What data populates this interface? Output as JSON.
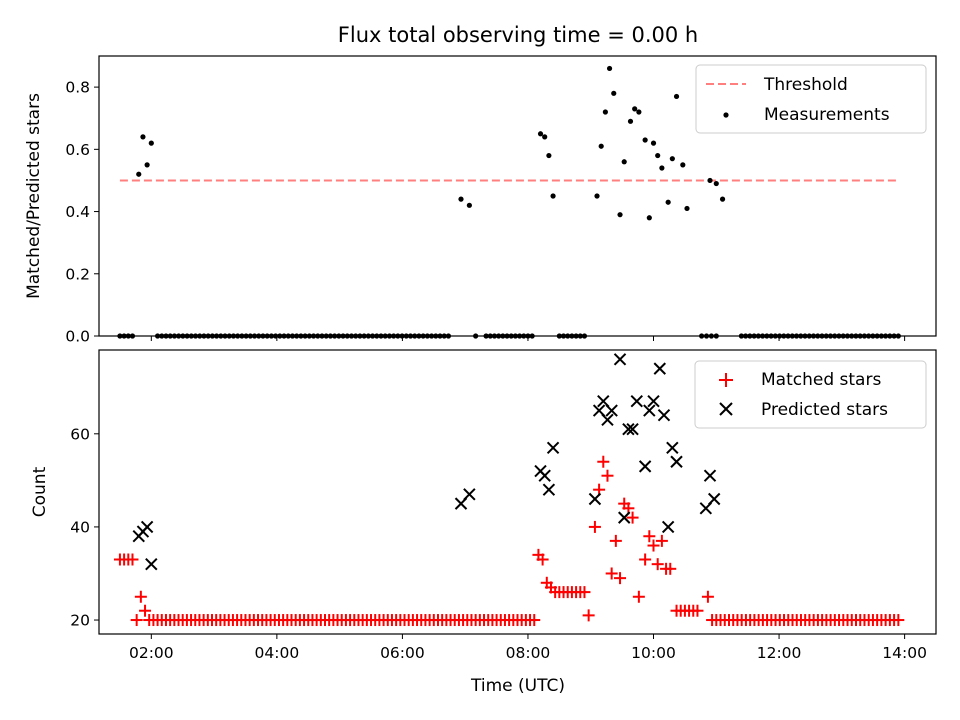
{
  "colors": {
    "threshold": "#ff7f7f",
    "measurements": "#000000",
    "matched": "#ff0000",
    "predicted": "#000000"
  },
  "chart_data": [
    {
      "type": "scatter",
      "title": "Flux total observing time = 0.00 h",
      "xlabel": "",
      "ylabel": "Matched/Predicted stars",
      "xlim": [
        "01:10",
        "14:30"
      ],
      "ylim": [
        0,
        0.9
      ],
      "yticks": [
        "0.0",
        "0.2",
        "0.4",
        "0.6",
        "0.8"
      ],
      "legend_position": "top-right",
      "series": [
        {
          "name": "Threshold",
          "style": "dashed-line",
          "points": [
            [
              "01:30",
              0.5
            ],
            [
              "13:55",
              0.5
            ]
          ]
        },
        {
          "name": "Measurements",
          "style": "dot",
          "points": [
            [
              "01:48",
              0.52
            ],
            [
              "01:52",
              0.64
            ],
            [
              "01:56",
              0.55
            ],
            [
              "02:00",
              0.62
            ],
            [
              "06:56",
              0.44
            ],
            [
              "07:04",
              0.42
            ],
            [
              "08:12",
              0.65
            ],
            [
              "08:16",
              0.64
            ],
            [
              "08:20",
              0.58
            ],
            [
              "08:24",
              0.45
            ],
            [
              "09:06",
              0.45
            ],
            [
              "09:10",
              0.61
            ],
            [
              "09:14",
              0.72
            ],
            [
              "09:18",
              0.86
            ],
            [
              "09:22",
              0.78
            ],
            [
              "09:28",
              0.39
            ],
            [
              "09:32",
              0.56
            ],
            [
              "09:38",
              0.69
            ],
            [
              "09:42",
              0.73
            ],
            [
              "09:46",
              0.72
            ],
            [
              "09:52",
              0.63
            ],
            [
              "09:56",
              0.38
            ],
            [
              "10:00",
              0.62
            ],
            [
              "10:04",
              0.58
            ],
            [
              "10:08",
              0.54
            ],
            [
              "10:14",
              0.43
            ],
            [
              "10:18",
              0.57
            ],
            [
              "10:22",
              0.77
            ],
            [
              "10:28",
              0.55
            ],
            [
              "10:32",
              0.41
            ],
            [
              "10:54",
              0.5
            ],
            [
              "11:00",
              0.49
            ],
            [
              "11:06",
              0.44
            ]
          ],
          "zero_value_runs": [
            [
              "01:30",
              "01:42",
              4
            ],
            [
              "02:06",
              "06:44",
              70
            ],
            [
              "07:10",
              "07:12",
              1
            ],
            [
              "07:20",
              "08:04",
              12
            ],
            [
              "08:30",
              "08:54",
              7
            ],
            [
              "10:46",
              "11:00",
              4
            ],
            [
              "11:24",
              "13:54",
              38
            ]
          ]
        }
      ]
    },
    {
      "type": "scatter",
      "title": "",
      "xlabel": "Time (UTC)",
      "ylabel": "Count",
      "xlim": [
        "01:10",
        "14:30"
      ],
      "ylim": [
        17,
        78
      ],
      "yticks": [
        "20",
        "40",
        "60"
      ],
      "xticks": [
        "02:00",
        "04:00",
        "06:00",
        "08:00",
        "10:00",
        "12:00",
        "14:00"
      ],
      "legend_position": "top-right",
      "series": [
        {
          "name": "Matched stars",
          "marker": "plus",
          "points": [
            [
              "01:30",
              33
            ],
            [
              "01:34",
              33
            ],
            [
              "01:38",
              33
            ],
            [
              "01:42",
              33
            ],
            [
              "01:46",
              20
            ],
            [
              "01:50",
              25
            ],
            [
              "01:54",
              22
            ],
            [
              "01:58",
              20
            ],
            [
              "08:10",
              34
            ],
            [
              "08:14",
              33
            ],
            [
              "08:18",
              28
            ],
            [
              "08:22",
              27
            ],
            [
              "08:26",
              26
            ],
            [
              "08:30",
              26
            ],
            [
              "08:34",
              26
            ],
            [
              "08:38",
              26
            ],
            [
              "08:42",
              26
            ],
            [
              "08:46",
              26
            ],
            [
              "08:50",
              26
            ],
            [
              "08:54",
              26
            ],
            [
              "08:58",
              21
            ],
            [
              "09:04",
              40
            ],
            [
              "09:08",
              48
            ],
            [
              "09:12",
              54
            ],
            [
              "09:16",
              51
            ],
            [
              "09:20",
              30
            ],
            [
              "09:24",
              37
            ],
            [
              "09:28",
              29
            ],
            [
              "09:32",
              45
            ],
            [
              "09:36",
              44
            ],
            [
              "09:40",
              42
            ],
            [
              "09:46",
              25
            ],
            [
              "09:52",
              33
            ],
            [
              "09:56",
              38
            ],
            [
              "10:00",
              36
            ],
            [
              "10:04",
              32
            ],
            [
              "10:08",
              37
            ],
            [
              "10:12",
              31
            ],
            [
              "10:16",
              31
            ],
            [
              "10:22",
              22
            ],
            [
              "10:26",
              22
            ],
            [
              "10:30",
              22
            ],
            [
              "10:34",
              22
            ],
            [
              "10:38",
              22
            ],
            [
              "10:42",
              22
            ],
            [
              "10:52",
              25
            ],
            [
              "10:56",
              20
            ]
          ],
          "baseline_runs": [
            [
              "02:02",
              "08:06",
              20,
              92
            ],
            [
              "11:00",
              "13:54",
              20,
              44
            ]
          ]
        },
        {
          "name": "Predicted stars",
          "marker": "x",
          "points": [
            [
              "01:48",
              38
            ],
            [
              "01:52",
              39
            ],
            [
              "01:56",
              40
            ],
            [
              "02:00",
              32
            ],
            [
              "06:56",
              45
            ],
            [
              "07:04",
              47
            ],
            [
              "08:12",
              52
            ],
            [
              "08:16",
              51
            ],
            [
              "08:20",
              48
            ],
            [
              "08:24",
              57
            ],
            [
              "09:04",
              46
            ],
            [
              "09:08",
              65
            ],
            [
              "09:12",
              67
            ],
            [
              "09:16",
              63
            ],
            [
              "09:20",
              65
            ],
            [
              "09:28",
              76
            ],
            [
              "09:32",
              42
            ],
            [
              "09:36",
              61
            ],
            [
              "09:40",
              61
            ],
            [
              "09:44",
              67
            ],
            [
              "09:52",
              53
            ],
            [
              "09:56",
              65
            ],
            [
              "10:00",
              67
            ],
            [
              "10:06",
              74
            ],
            [
              "10:10",
              64
            ],
            [
              "10:14",
              40
            ],
            [
              "10:18",
              57
            ],
            [
              "10:22",
              54
            ],
            [
              "10:50",
              44
            ],
            [
              "10:54",
              51
            ],
            [
              "10:58",
              46
            ]
          ]
        }
      ]
    }
  ]
}
